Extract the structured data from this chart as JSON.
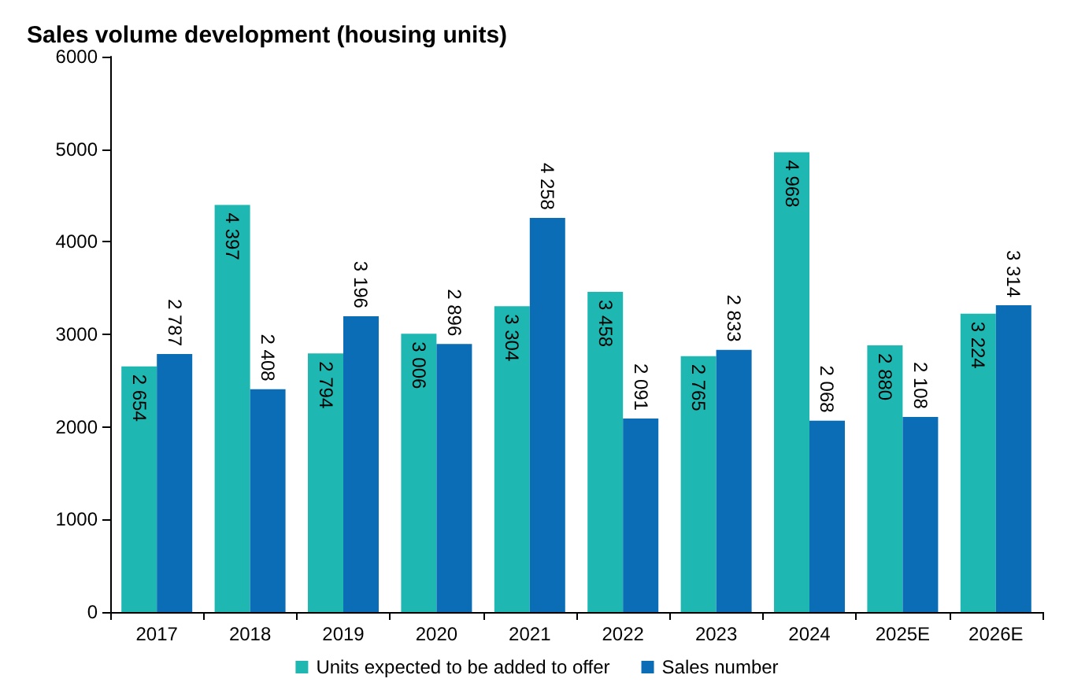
{
  "chart_data": {
    "type": "bar",
    "title": "Sales volume development (housing units)",
    "categories": [
      "2017",
      "2018",
      "2019",
      "2020",
      "2021",
      "2022",
      "2023",
      "2024",
      "2025E",
      "2026E"
    ],
    "series": [
      {
        "name": "Units expected to be added to offer",
        "color": "#1fb7b1",
        "values": [
          2654,
          4397,
          2794,
          3006,
          3304,
          3458,
          2765,
          4968,
          2880,
          3224
        ],
        "value_labels": [
          "2 654",
          "4 397",
          "2 794",
          "3 006",
          "3 304",
          "3 458",
          "2 765",
          "4 968",
          "2 880",
          "3 224"
        ]
      },
      {
        "name": "Sales number",
        "color": "#0a6db5",
        "values": [
          2787,
          2408,
          3196,
          2896,
          4258,
          2091,
          2833,
          2068,
          2108,
          3314
        ],
        "value_labels": [
          "2 787",
          "2 408",
          "3 196",
          "2 896",
          "4 258",
          "2 091",
          "2 833",
          "2 068",
          "2 108",
          "3 314"
        ]
      }
    ],
    "ylim": [
      0,
      6000
    ],
    "yticks": [
      0,
      1000,
      2000,
      3000,
      4000,
      5000,
      6000
    ],
    "grid": false,
    "legend": "bottom"
  }
}
